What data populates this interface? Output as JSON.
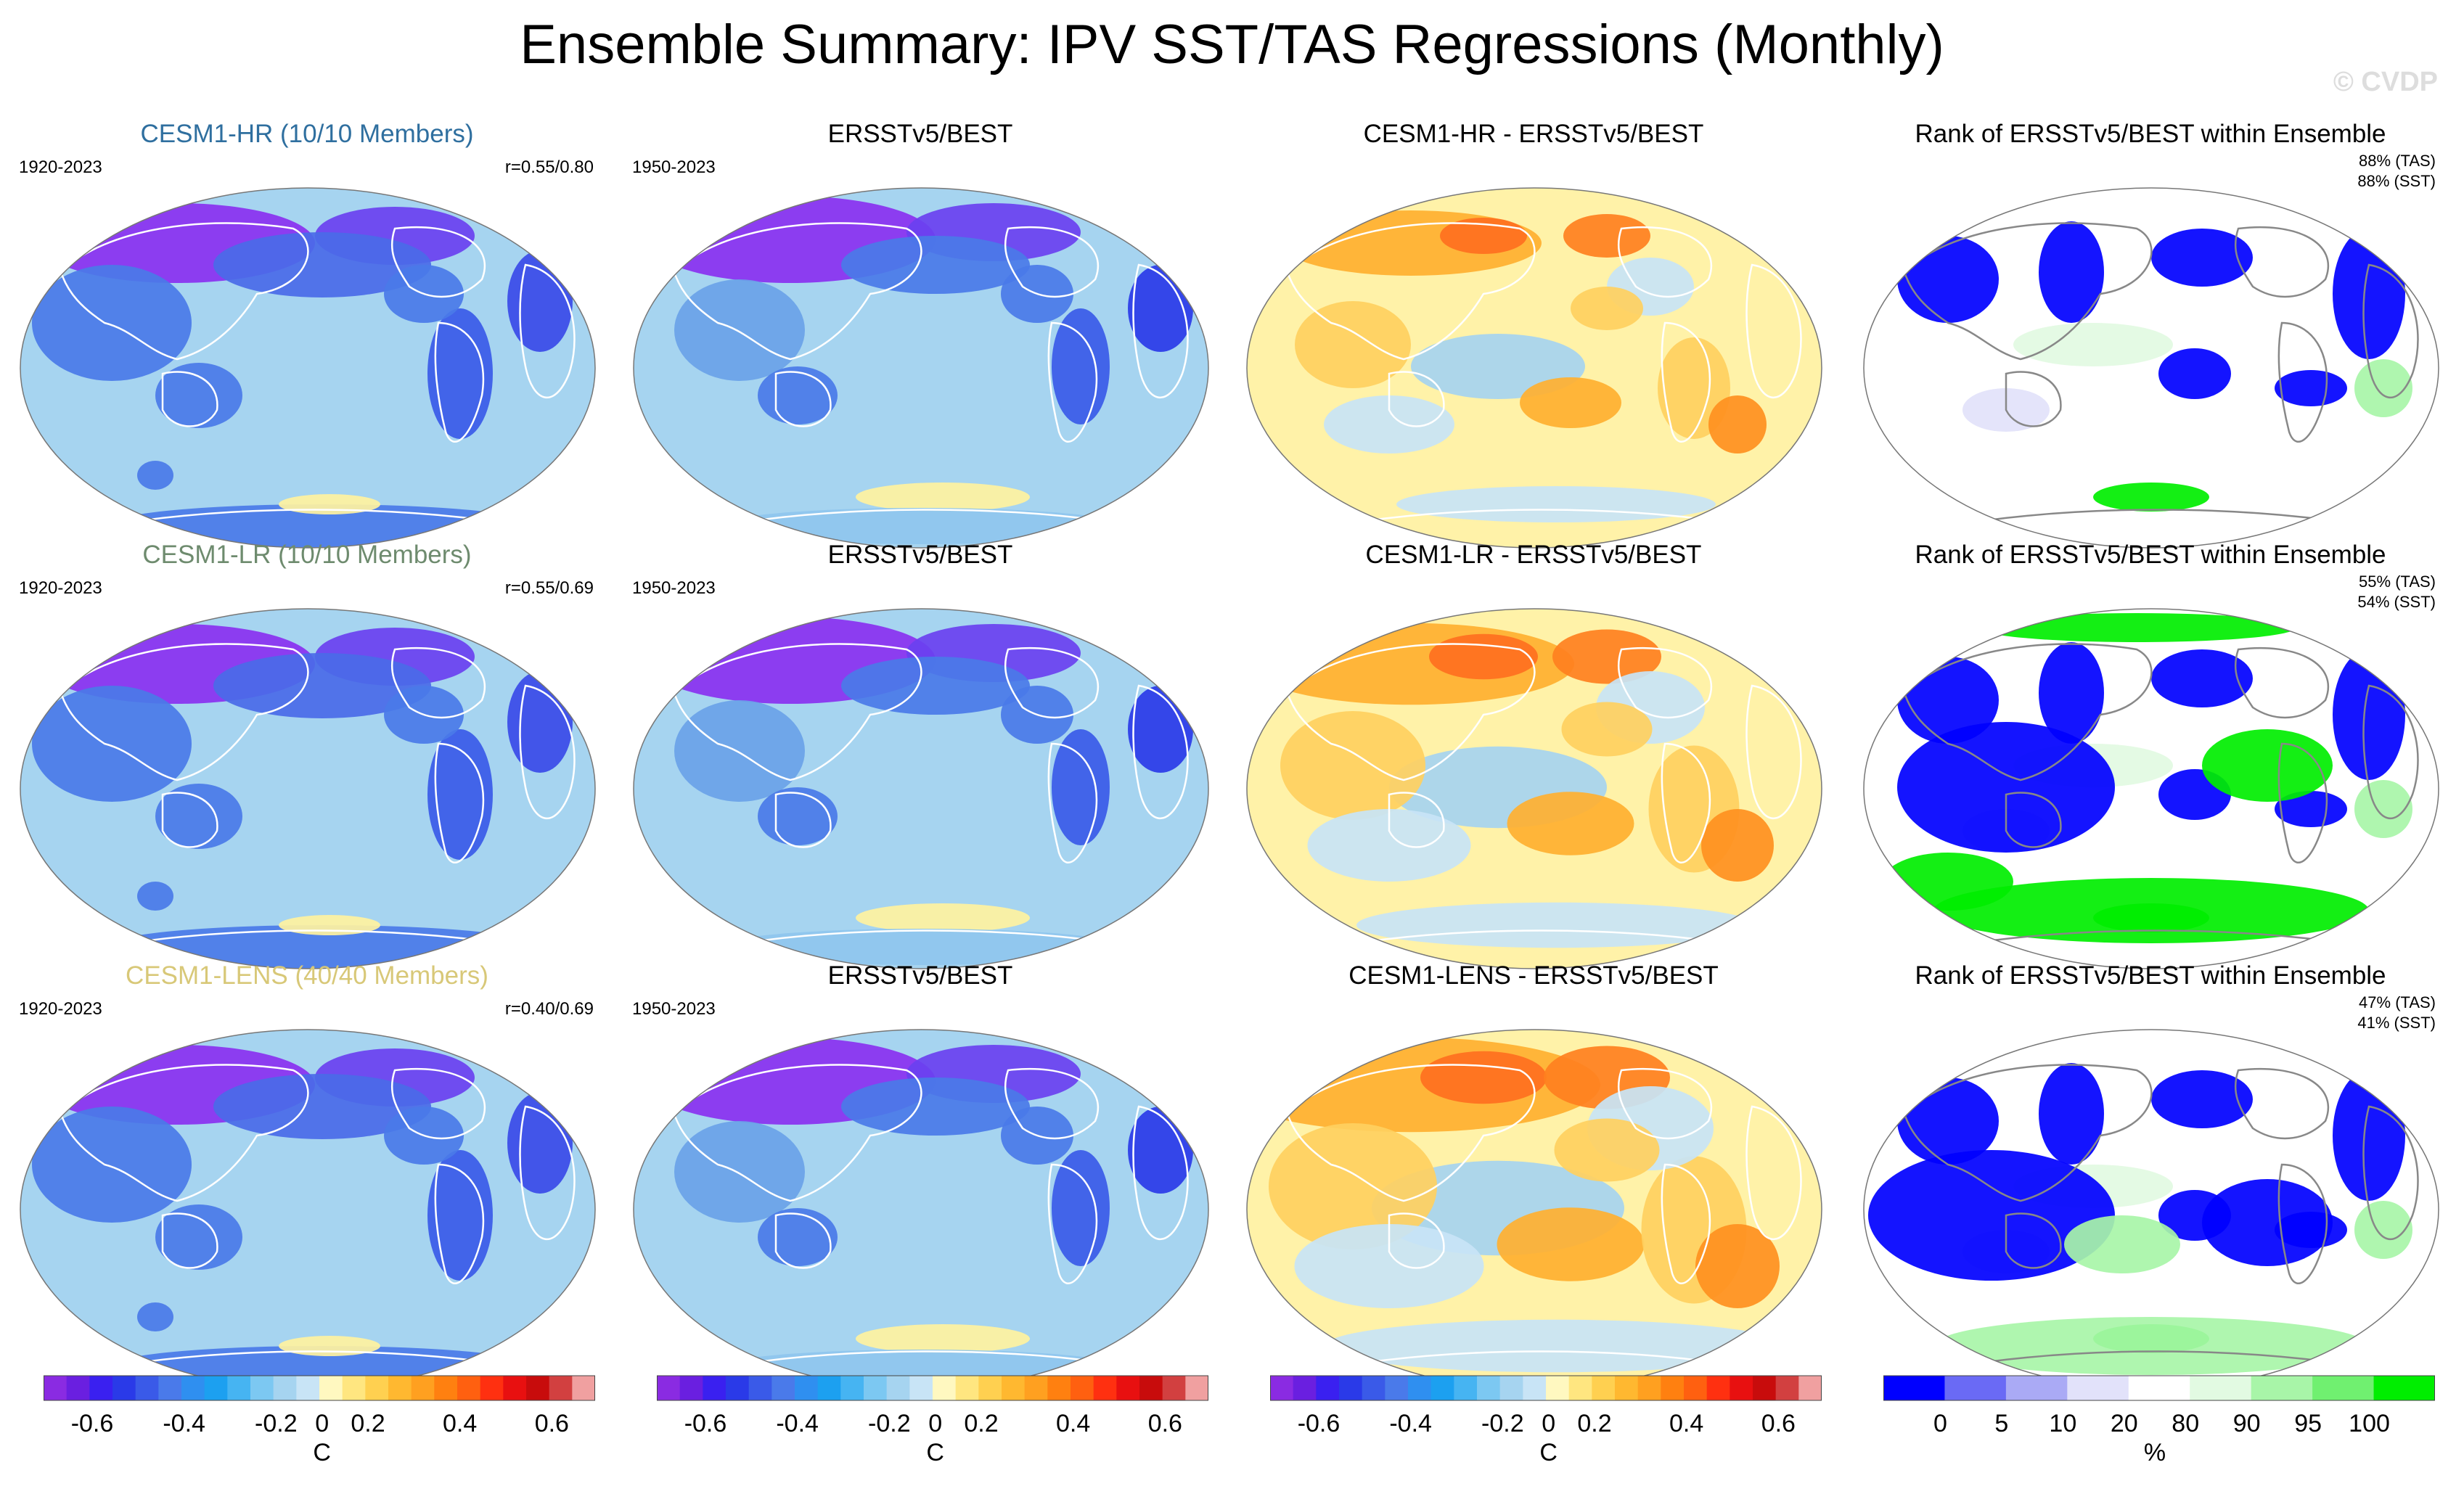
{
  "title": "Ensemble Summary: IPV SST/TAS Regressions (Monthly)",
  "watermark": "© CVDP",
  "colors": {
    "hr_title": "#2f6f9f",
    "lr_title": "#6e8b6e",
    "lens_title": "#d8c878",
    "ocean_base": "#a6d4f0",
    "diff_base": "#fff2a8",
    "rank_base": "#ffffff"
  },
  "rows": [
    {
      "model_title": "CESM1-HR (10/10 Members)",
      "model_period": "1920-2023",
      "model_corr": "r=0.55/0.80",
      "obs_title": "ERSSTv5/BEST",
      "obs_period": "1950-2023",
      "diff_title": "CESM1-HR - ERSSTv5/BEST",
      "rank_title": "Rank of ERSSTv5/BEST within Ensemble",
      "rank_tas": "88% (TAS)",
      "rank_sst": "88% (SST)"
    },
    {
      "model_title": "CESM1-LR (10/10 Members)",
      "model_period": "1920-2023",
      "model_corr": "r=0.55/0.69",
      "obs_title": "ERSSTv5/BEST",
      "obs_period": "1950-2023",
      "diff_title": "CESM1-LR - ERSSTv5/BEST",
      "rank_title": "Rank of ERSSTv5/BEST within Ensemble",
      "rank_tas": "55% (TAS)",
      "rank_sst": "54% (SST)"
    },
    {
      "model_title": "CESM1-LENS (40/40 Members)",
      "model_period": "1920-2023",
      "model_corr": "r=0.40/0.69",
      "obs_title": "ERSSTv5/BEST",
      "obs_period": "1950-2023",
      "diff_title": "CESM1-LENS - ERSSTv5/BEST",
      "rank_title": "Rank of ERSSTv5/BEST within Ensemble",
      "rank_tas": "47% (TAS)",
      "rank_sst": "41% (SST)"
    }
  ],
  "colorbars": {
    "temp": {
      "ticks": [
        "-0.6",
        "-0.4",
        "-0.2",
        "0",
        "0.2",
        "0.4",
        "0.6"
      ],
      "units": "C",
      "colors": [
        "#8a2be2",
        "#6a1fe0",
        "#3a20f0",
        "#2a3ae8",
        "#3a5ae8",
        "#4a7aea",
        "#2f8ff0",
        "#1ca0f0",
        "#46b4f2",
        "#7cc8f2",
        "#a6d4f0",
        "#c8e4f6",
        "#fff8c0",
        "#ffe680",
        "#ffd050",
        "#ffb830",
        "#ffa020",
        "#ff8010",
        "#ff6010",
        "#ff3010",
        "#e81010",
        "#c80c0c",
        "#d24040",
        "#f0a0a0"
      ]
    },
    "rank": {
      "ticks": [
        "0",
        "5",
        "10",
        "20",
        "80",
        "90",
        "95",
        "100"
      ],
      "units": "%",
      "colors": [
        "#0000ff",
        "#6a6af5",
        "#aaaaf5",
        "#e2e2fa",
        "#ffffff",
        "#e2fae2",
        "#a8f5a8",
        "#70f070",
        "#00ee00"
      ]
    }
  }
}
